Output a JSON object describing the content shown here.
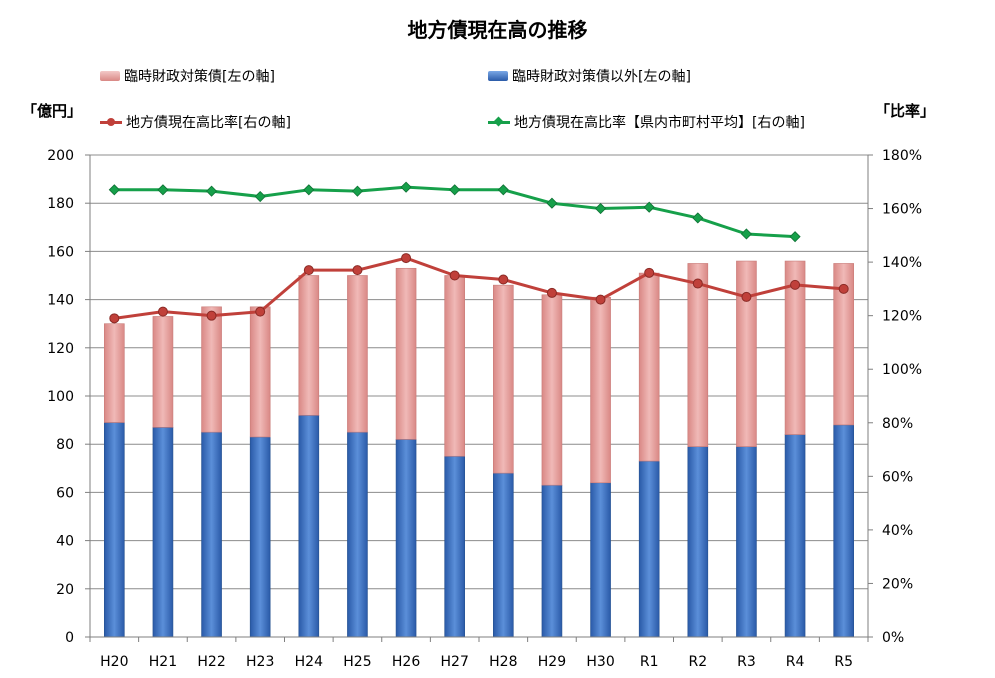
{
  "chart_data": {
    "type": "bar",
    "title": "地方債現在高の推移",
    "ylabel_left": "「億円」",
    "ylabel_right": "「比率」",
    "categories": [
      "H20",
      "H21",
      "H22",
      "H23",
      "H24",
      "H25",
      "H26",
      "H27",
      "H28",
      "H29",
      "H30",
      "R1",
      "R2",
      "R3",
      "R4",
      "R5"
    ],
    "ylim_left": [
      0,
      200
    ],
    "yticks_left": [
      "0",
      "20",
      "40",
      "60",
      "80",
      "100",
      "120",
      "140",
      "160",
      "180",
      "200"
    ],
    "ylim_right": [
      0,
      180
    ],
    "yticks_right": [
      "0%",
      "20%",
      "40%",
      "60%",
      "80%",
      "100%",
      "120%",
      "140%",
      "160%",
      "180%"
    ],
    "grid": true,
    "legend_position": "top",
    "series": [
      {
        "name": "臨時財政対策債以外[左の軸]",
        "kind": "bar-stack",
        "axis": "left",
        "color": "#3f78c8",
        "values": [
          89,
          87,
          85,
          83,
          92,
          85,
          82,
          75,
          68,
          63,
          64,
          73,
          79,
          79,
          84,
          88
        ]
      },
      {
        "name": "臨時財政対策債[左の軸]",
        "kind": "bar-stack",
        "axis": "left",
        "color": "#e6a3a1",
        "values": [
          41,
          46,
          52,
          54,
          58,
          65,
          71,
          75,
          78,
          79,
          77,
          78,
          76,
          77,
          72,
          67
        ]
      },
      {
        "name": "地方債現在高比率[右の軸]",
        "kind": "line",
        "axis": "right",
        "color": "#c0403a",
        "marker": "circle",
        "values": [
          119,
          121.5,
          120,
          121.5,
          137,
          137,
          141.5,
          135,
          133.5,
          128.5,
          126,
          136,
          132,
          127,
          131.5,
          130
        ]
      },
      {
        "name": "地方債現在高比率【県内市町村平均】[右の軸]",
        "kind": "line",
        "axis": "right",
        "color": "#16a04a",
        "marker": "diamond",
        "values": [
          167,
          167,
          166.5,
          164.5,
          167,
          166.5,
          168,
          167,
          167,
          162,
          160,
          160.5,
          156.5,
          150.5,
          149.5,
          null
        ]
      }
    ]
  }
}
